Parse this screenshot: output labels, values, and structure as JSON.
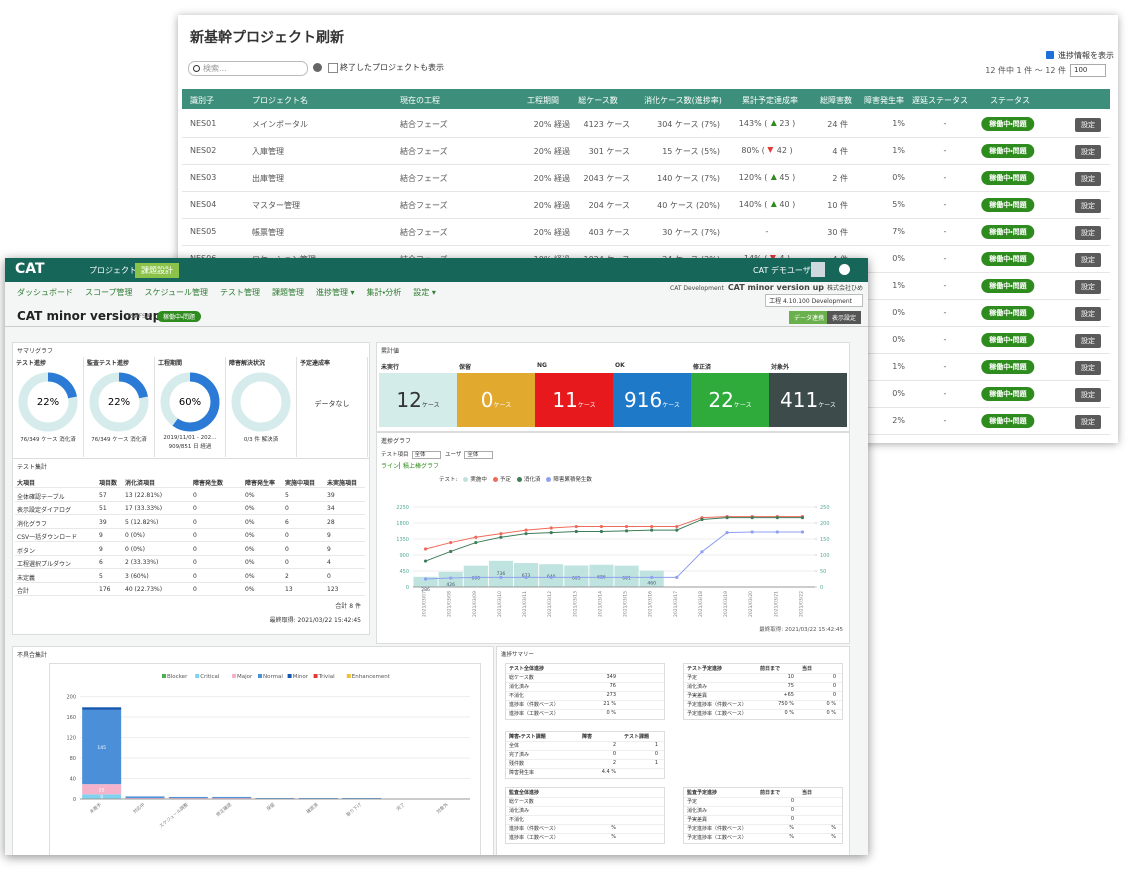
{
  "back": {
    "title": "新基幹プロジェクト刷新",
    "search_placeholder": "検索...",
    "show_closed": "終了したプロジェクトも表示",
    "show_progress": "進捗情報を表示",
    "count": "12 件中 1 件 ～ 12 件",
    "page_size": "100",
    "table": {
      "header": [
        "識別子",
        "プロジェクト名",
        "現在の工程",
        "工程期間",
        "総ケース数",
        "消化ケース数(進捗率)",
        "累計予定達成率",
        "総障害数",
        "障害発生率",
        "遅延ステータス",
        "ステータス"
      ],
      "rows": [
        [
          "NES01",
          "メインポータル",
          "結合フェーズ",
          "20% 経過",
          "4123 ケース",
          "304 ケース (7%)",
          {
            "before": "143% (",
            "trend": "up",
            "after": "23 )"
          },
          "24 件",
          "1%",
          "-",
          "稼働中・問題",
          "設定"
        ],
        [
          "NES02",
          "入庫管理",
          "結合フェーズ",
          "20% 経過",
          "301 ケース",
          "15 ケース (5%)",
          {
            "before": "80% (",
            "trend": "down",
            "after": "42 )"
          },
          "4 件",
          "1%",
          "-",
          "稼働中・問題",
          "設定"
        ],
        [
          "NES03",
          "出庫管理",
          "結合フェーズ",
          "20% 経過",
          "2043 ケース",
          "140 ケース (7%)",
          {
            "before": "120% (",
            "trend": "up",
            "after": "45 )"
          },
          "2 件",
          "0%",
          "-",
          "稼働中・問題",
          "設定"
        ],
        [
          "NES04",
          "マスター管理",
          "結合フェーズ",
          "20% 経過",
          "204 ケース",
          "40 ケース (20%)",
          {
            "before": "140% (",
            "trend": "up",
            "after": "40 )"
          },
          "10 件",
          "5%",
          "-",
          "稼働中・問題",
          "設定"
        ],
        [
          "NES05",
          "帳票管理",
          "結合フェーズ",
          "20% 経過",
          "403 ケース",
          "30 ケース (7%)",
          "-",
          "30 件",
          "7%",
          "-",
          "稼働中・問題",
          "設定"
        ],
        [
          "NES06",
          "ロケーション管理",
          "結合フェーズ",
          "10% 経過",
          "1024 ケース",
          "24 ケース (2%)",
          {
            "before": "14% (",
            "trend": "down",
            "after": "4 )"
          },
          "4 件",
          "0%",
          "-",
          "稼働中・問題",
          "設定"
        ]
      ],
      "partial_rows": [
        {
          "rate": "1%",
          "delay": "-",
          "status": "稼働中・問題",
          "button": "設定"
        },
        {
          "rate": "0%",
          "delay": "-",
          "status": "稼働中・問題",
          "button": "設定"
        },
        {
          "rate": "0%",
          "delay": "-",
          "status": "稼働中・問題",
          "button": "設定"
        },
        {
          "rate": "1%",
          "delay": "-",
          "status": "稼働中・問題",
          "button": "設定"
        },
        {
          "rate": "0%",
          "delay": "-",
          "status": "稼働中・問題",
          "button": "設定"
        },
        {
          "rate": "2%",
          "delay": "-",
          "status": "稼働中・問題",
          "button": "設定"
        }
      ]
    }
  },
  "front": {
    "logo": "CAT",
    "menu_project": "プロジェクト ▾",
    "menu_active": "課題設計",
    "user": "CAT デモユーザー",
    "nav": [
      "ダッシュボード",
      "スコープ管理",
      "スケジュール管理",
      "テスト管理",
      "課題管理",
      "進捗管理 ▾",
      "集計・分析",
      "設定 ▾"
    ],
    "org": "CAT Development",
    "project": "CAT minor version up",
    "company": "株式会社ひめ",
    "phase_select": "工程 4.10.100 Development",
    "title": "CAT minor version up",
    "code": "(FSAFSA)",
    "badge": "稼働中・問題",
    "buttons": [
      "データ連携",
      "表示設定"
    ],
    "summary": {
      "title": "サマリグラフ",
      "items": [
        {
          "label": "テスト進捗",
          "value": 22,
          "value_label": "22%",
          "note": "76/349 ケース 消化済"
        },
        {
          "label": "監査テスト進捗",
          "value": 22,
          "value_label": "22%",
          "note": "76/349 ケース 消化済"
        },
        {
          "label": "工程期間",
          "value": 60,
          "value_label": "60%",
          "note": [
            "2019/11/01 - 202…",
            "909/851 日 経過"
          ]
        },
        {
          "label": "障害解決状況",
          "value": 0,
          "note": "0/3 件 解決済"
        },
        {
          "label": "予定達成率",
          "text": "データなし"
        }
      ]
    },
    "test_table": {
      "title": "テスト集計",
      "header": [
        "大項目",
        "項目数",
        "消化済項目",
        "障害発生数",
        "障害発生率",
        "実施中項目",
        "未実施項目"
      ],
      "rows": [
        [
          "全体確認テーブル",
          "57",
          "13 (22.81%)",
          "0",
          "0%",
          "5",
          "39"
        ],
        [
          "表示設定ダイアログ",
          "51",
          "17 (33.33%)",
          "0",
          "0%",
          "0",
          "34"
        ],
        [
          "消化グラフ",
          "39",
          "5 (12.82%)",
          "0",
          "0%",
          "6",
          "28"
        ],
        [
          "CSV一括ダウンロード",
          "9",
          "0 (0%)",
          "0",
          "0%",
          "0",
          "9"
        ],
        [
          "ボタン",
          "9",
          "0 (0%)",
          "0",
          "0%",
          "0",
          "9"
        ],
        [
          "工程選択プルダウン",
          "6",
          "2 (33.33%)",
          "0",
          "0%",
          "0",
          "4"
        ],
        [
          "未定義",
          "5",
          "3 (60%)",
          "0",
          "0%",
          "2",
          "0"
        ],
        [
          "合計",
          "176",
          "40 (22.73%)",
          "0",
          "0%",
          "13",
          "123"
        ]
      ],
      "total": "合計 8 件",
      "fetched": "最終取得: 2021/03/22 15:42:45"
    },
    "totals": {
      "title": "累計値",
      "cells": [
        {
          "label": "未実行",
          "value": 12,
          "unit": "ケース",
          "color": "#d3ebe9",
          "text_color": "#333333"
        },
        {
          "label": "保留",
          "value": 0,
          "unit": "ケース",
          "color": "#e2a92f",
          "text_color": "#ffffff"
        },
        {
          "label": "NG",
          "value": 11,
          "unit": "ケース",
          "color": "#e8191c",
          "text_color": "#ffffff"
        },
        {
          "label": "OK",
          "value": 916,
          "unit": "ケース",
          "color": "#1f79c9",
          "text_color": "#ffffff"
        },
        {
          "label": "修正済",
          "value": 22,
          "unit": "ケース",
          "color": "#2fab3b",
          "text_color": "#ffffff"
        },
        {
          "label": "対象外",
          "value": 411,
          "unit": "ケース",
          "color": "#3e4b4b",
          "text_color": "#ffffff"
        }
      ]
    },
    "progress_summary": {
      "title": "進捗サマリー",
      "tables": [
        {
          "columns": [
            "テスト全体進捗"
          ],
          "rows": [
            [
              "総ケース数",
              "349"
            ],
            [
              "消化済み",
              "76"
            ],
            [
              "不消化",
              "273"
            ],
            [
              "進捗率（件数ベース）",
              "21 %"
            ],
            [
              "進捗率（工数ベース）",
              "0 %"
            ]
          ]
        },
        {
          "columns": [
            "テスト予定進捗",
            "前日まで",
            "当日"
          ],
          "rows": [
            [
              "予定",
              "10",
              "0"
            ],
            [
              "消化済み",
              "75",
              "0"
            ],
            [
              "予実差異",
              "+65",
              "0"
            ],
            [
              "予定進捗率（件数ベース）",
              "750 %",
              "0 %"
            ],
            [
              "予定進捗率（工数ベース）",
              "0 %",
              "0 %"
            ]
          ]
        },
        {
          "columns": [
            "障害・テスト課題",
            "障害",
            "テスト課題"
          ],
          "rows": [
            [
              "全体",
              "2",
              "1"
            ],
            [
              "完了済み",
              "0",
              "0"
            ],
            [
              "残件数",
              "2",
              "1"
            ],
            [
              "障害発生率",
              "4.4 %"
            ]
          ]
        },
        {
          "columns": [
            "監査全体進捗"
          ],
          "rows": [
            [
              "総ケース数"
            ],
            [
              "消化済み"
            ],
            [
              "不消化"
            ],
            [
              "進捗率（件数ベース）",
              "%"
            ],
            [
              "進捗率（工数ベース）",
              "%"
            ]
          ]
        },
        {
          "columns": [
            "監査予定進捗",
            "前日まで",
            "当日"
          ],
          "rows": [
            [
              "予定",
              "0"
            ],
            [
              "消化済み",
              "0"
            ],
            [
              "予実差異",
              "0"
            ],
            [
              "予定進捗率（件数ベース）",
              "%",
              "%"
            ],
            [
              "予定進捗率（工数ベース）",
              "%",
              "%"
            ]
          ]
        }
      ]
    }
  },
  "chart_data": [
    {
      "type": "line",
      "title": "進捗グラフ",
      "filters": [
        {
          "label": "テスト項目",
          "value": "全体"
        },
        {
          "label": "ユーザ",
          "value": "全体"
        }
      ],
      "modes": [
        "ライン",
        "積上棒グラフ"
      ],
      "legend_group": "テスト:",
      "categories": [
        "2021/03/07",
        "2021/03/08",
        "2021/03/09",
        "2021/03/10",
        "2021/03/11",
        "2021/03/12",
        "2021/03/13",
        "2021/03/14",
        "2021/03/15",
        "2021/03/16",
        "2021/03/17",
        "2021/03/18",
        "2021/03/19",
        "2021/03/20",
        "2021/03/21",
        "2021/03/22"
      ],
      "series": [
        {
          "name": "実施中",
          "style": "bar",
          "color": "#bfe3df",
          "values": [
            286,
            426,
            600,
            736,
            673,
            640,
            605,
            626,
            601,
            460,
            0,
            0,
            0,
            0,
            0,
            0
          ]
        },
        {
          "name": "予定",
          "style": "line",
          "color": "#ef6a5a",
          "values": [
            1070,
            1250,
            1400,
            1500,
            1600,
            1660,
            1700,
            1700,
            1700,
            1700,
            1700,
            1950,
            1980,
            1980,
            1980,
            1980
          ]
        },
        {
          "name": "消化済",
          "style": "line",
          "color": "#3e7d5a",
          "values": [
            730,
            1000,
            1250,
            1400,
            1500,
            1530,
            1560,
            1560,
            1580,
            1600,
            1600,
            1900,
            1950,
            1950,
            1950,
            1950
          ]
        },
        {
          "name": "障害累積発生数",
          "style": "line",
          "color": "#8fa0f0",
          "axis": "y2",
          "values": [
            25,
            28,
            30,
            30,
            30,
            30,
            30,
            30,
            30,
            30,
            30,
            110,
            170,
            172,
            172,
            172
          ]
        }
      ],
      "ylim": [
        0,
        2250
      ],
      "yticks": [
        0,
        450,
        900,
        1350,
        1800,
        2250
      ],
      "y2lim": [
        0,
        250
      ],
      "y2ticks": [
        0,
        50,
        100,
        150,
        200,
        250
      ],
      "grid": true,
      "footnote": "最終取得: 2021/03/22 15:42:45"
    },
    {
      "type": "bar",
      "stacked": true,
      "title": "不具合集計",
      "categories": [
        "未着手",
        "対応中",
        "スケジュール調整",
        "修正確認",
        "保留",
        "確認済",
        "取り下げ",
        "完了",
        "対象外"
      ],
      "series": [
        {
          "name": "Blocker",
          "color": "#4caf50",
          "values": [
            0,
            0,
            0,
            0,
            0,
            0,
            0,
            0,
            0
          ]
        },
        {
          "name": "Critical",
          "color": "#7fd3f0",
          "values": [
            9,
            1,
            1,
            1,
            0,
            0,
            0,
            0,
            0
          ]
        },
        {
          "name": "Major",
          "color": "#f4b3ca",
          "values": [
            20,
            1,
            1,
            1,
            1,
            1,
            1,
            0,
            0
          ]
        },
        {
          "name": "Normal",
          "color": "#4a8fd8",
          "values": [
            145,
            3,
            2,
            2,
            1,
            1,
            1,
            0,
            0
          ]
        },
        {
          "name": "Minor",
          "color": "#1558b0",
          "values": [
            5,
            0,
            0,
            0,
            0,
            0,
            0,
            0,
            0
          ]
        },
        {
          "name": "Trivial",
          "color": "#e53935",
          "values": [
            0,
            0,
            0,
            0,
            0,
            0,
            0,
            0,
            0
          ]
        },
        {
          "name": "Enhancement",
          "color": "#f5c02d",
          "values": [
            0,
            0,
            0,
            0,
            0,
            0,
            0,
            0,
            0
          ]
        }
      ],
      "ylim": [
        0,
        205
      ],
      "yticks": [
        0,
        40,
        80,
        120,
        160,
        200
      ],
      "grid": true
    }
  ]
}
